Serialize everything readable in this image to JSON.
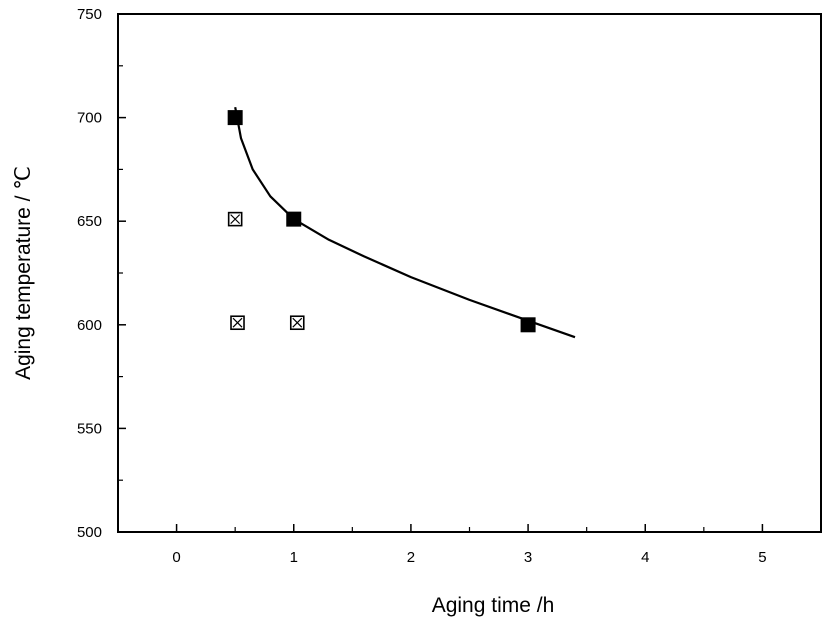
{
  "chart_data": {
    "type": "scatter",
    "xlabel": "Aging time /h",
    "ylabel": "Aging temperature / ℃",
    "xlim": [
      -0.5,
      5.5
    ],
    "ylim": [
      500,
      750
    ],
    "x_ticks": [
      0,
      1,
      2,
      3,
      4,
      5
    ],
    "y_ticks": [
      500,
      550,
      600,
      650,
      700,
      750
    ],
    "grid": false,
    "legend": "none",
    "series": [
      {
        "marker": "filled-square",
        "color": "#000000",
        "points": [
          {
            "x": 0.5,
            "y": 700
          },
          {
            "x": 1.0,
            "y": 651
          },
          {
            "x": 3.0,
            "y": 600
          }
        ]
      },
      {
        "marker": "crossed-square",
        "color": "#000000",
        "points": [
          {
            "x": 0.5,
            "y": 651
          },
          {
            "x": 0.52,
            "y": 601
          },
          {
            "x": 1.03,
            "y": 601
          }
        ]
      }
    ],
    "fit_curve": {
      "color": "#000000",
      "points": [
        {
          "x": 0.5,
          "y": 705
        },
        {
          "x": 0.55,
          "y": 690
        },
        {
          "x": 0.65,
          "y": 675
        },
        {
          "x": 0.8,
          "y": 662
        },
        {
          "x": 1.0,
          "y": 651
        },
        {
          "x": 1.3,
          "y": 641
        },
        {
          "x": 1.6,
          "y": 633
        },
        {
          "x": 2.0,
          "y": 623
        },
        {
          "x": 2.5,
          "y": 612
        },
        {
          "x": 3.0,
          "y": 602
        },
        {
          "x": 3.4,
          "y": 594
        }
      ]
    }
  }
}
